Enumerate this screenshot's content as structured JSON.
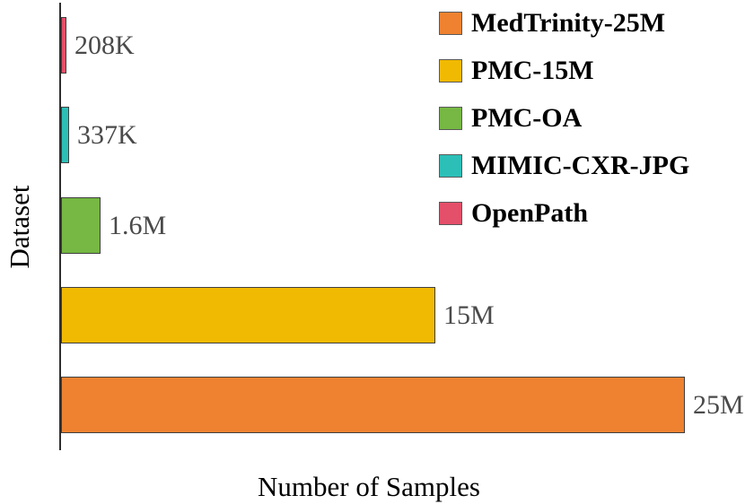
{
  "chart_data": {
    "type": "bar",
    "orientation": "horizontal",
    "xlabel": "Number of Samples",
    "ylabel": "Dataset",
    "xmax": 25000000,
    "grid": false,
    "legend_position": "top-right",
    "bars": [
      {
        "name": "OpenPath",
        "value": 208000,
        "value_label": "208K",
        "color": "#e44f69"
      },
      {
        "name": "MIMIC-CXR-JPG",
        "value": 337000,
        "value_label": "337K",
        "color": "#2cbfb7"
      },
      {
        "name": "PMC-OA",
        "value": 1600000,
        "value_label": "1.6M",
        "color": "#76b843"
      },
      {
        "name": "PMC-15M",
        "value": 15000000,
        "value_label": "15M",
        "color": "#f1ba02"
      },
      {
        "name": "MedTrinity-25M",
        "value": 25000000,
        "value_label": "25M",
        "color": "#ee8230"
      }
    ],
    "legend": [
      {
        "label": "MedTrinity-25M",
        "color": "#ee8230"
      },
      {
        "label": "PMC-15M",
        "color": "#f1ba02"
      },
      {
        "label": "PMC-OA",
        "color": "#76b843"
      },
      {
        "label": "MIMIC-CXR-JPG",
        "color": "#2cbfb7"
      },
      {
        "label": "OpenPath",
        "color": "#e44f69"
      }
    ],
    "colors": {
      "axis_line": "#2e2e2e",
      "bar_border": "#3f3f3f",
      "value_label_text": "#4a4a4a",
      "legend_text": "#000000"
    }
  }
}
